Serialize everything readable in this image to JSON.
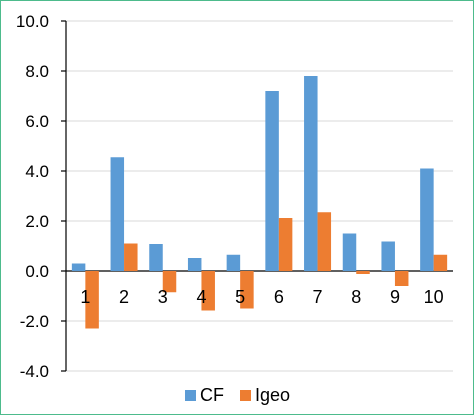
{
  "chart_data": {
    "type": "bar",
    "categories": [
      "1",
      "2",
      "3",
      "4",
      "5",
      "6",
      "7",
      "8",
      "9",
      "10"
    ],
    "series": [
      {
        "name": "CF",
        "values": [
          0.3,
          4.55,
          1.08,
          0.52,
          0.65,
          7.2,
          7.8,
          1.5,
          1.18,
          4.1
        ],
        "color": "#5b9bd5"
      },
      {
        "name": "Igeo",
        "values": [
          -2.3,
          1.1,
          -0.85,
          -1.58,
          -1.5,
          2.12,
          2.35,
          -0.12,
          -0.6,
          0.65
        ],
        "color": "#ed7d31"
      }
    ],
    "ylim": [
      -4.0,
      10.0
    ],
    "yticks": [
      "-4.0",
      "-2.0",
      "0.0",
      "2.0",
      "4.0",
      "6.0",
      "8.0",
      "10.0"
    ],
    "ytick_values": [
      -4,
      -2,
      0,
      2,
      4,
      6,
      8,
      10
    ],
    "grid": true,
    "legend_position": "bottom",
    "title": "",
    "xlabel": "",
    "ylabel": ""
  }
}
